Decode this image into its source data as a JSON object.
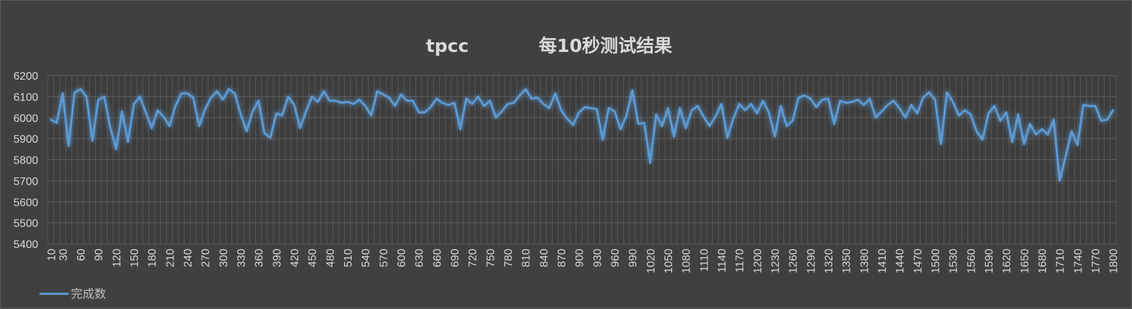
{
  "chart_data": {
    "type": "line",
    "title_left": "tpcc",
    "title_right": "每10秒测试结果",
    "xlabel": "",
    "ylabel": "",
    "ylim": [
      5400,
      6200
    ],
    "ytick_step": 100,
    "grid": true,
    "legend_position": "bottom-left",
    "x_step": 10,
    "x_tick_every": 30,
    "series": [
      {
        "name": "完成数",
        "color": "#5b9bd5",
        "values": [
          5990,
          5975,
          6115,
          5865,
          6120,
          6135,
          6100,
          5890,
          6085,
          6100,
          5955,
          5850,
          6030,
          5885,
          6065,
          6100,
          6025,
          5950,
          6035,
          6005,
          5960,
          6055,
          6115,
          6115,
          6095,
          5960,
          6040,
          6095,
          6125,
          6085,
          6135,
          6115,
          6015,
          5935,
          6030,
          6080,
          5925,
          5905,
          6020,
          6010,
          6100,
          6060,
          5950,
          6030,
          6100,
          6075,
          6125,
          6080,
          6080,
          6070,
          6075,
          6065,
          6085,
          6055,
          6010,
          6125,
          6110,
          6095,
          6055,
          6110,
          6080,
          6080,
          6025,
          6025,
          6050,
          6090,
          6070,
          6060,
          6070,
          5945,
          6090,
          6065,
          6100,
          6055,
          6080,
          6000,
          6030,
          6065,
          6070,
          6105,
          6135,
          6090,
          6095,
          6065,
          6045,
          6115,
          6035,
          5995,
          5965,
          6025,
          6050,
          6045,
          6040,
          5895,
          6045,
          6030,
          5945,
          6010,
          6130,
          5970,
          5975,
          5785,
          6015,
          5960,
          6045,
          5910,
          6045,
          5950,
          6035,
          6055,
          6005,
          5960,
          6005,
          6065,
          5905,
          5995,
          6065,
          6035,
          6065,
          6020,
          6080,
          6025,
          5910,
          6055,
          5960,
          5985,
          6095,
          6105,
          6090,
          6050,
          6085,
          6090,
          5970,
          6080,
          6070,
          6075,
          6085,
          6060,
          6090,
          6000,
          6030,
          6060,
          6080,
          6045,
          6000,
          6060,
          6020,
          6095,
          6120,
          6085,
          5875,
          6120,
          6075,
          6010,
          6035,
          6015,
          5935,
          5895,
          6020,
          6055,
          5985,
          6025,
          5885,
          6015,
          5875,
          5970,
          5920,
          5945,
          5920,
          5990,
          5700,
          5815,
          5935,
          5870,
          6060,
          6055,
          6055,
          5985,
          5990,
          6035
        ]
      }
    ]
  }
}
